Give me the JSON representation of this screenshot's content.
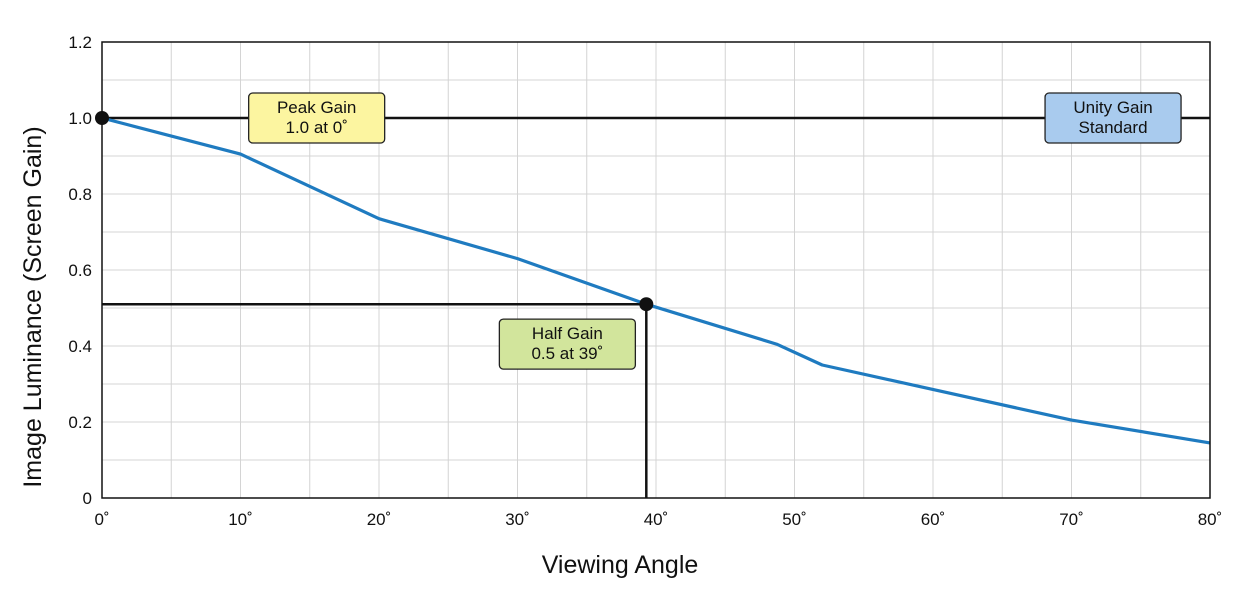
{
  "chart_data": {
    "type": "line",
    "xlabel": "Viewing Angle",
    "ylabel": "Image Luminance (Screen Gain)",
    "xlim": [
      0,
      80
    ],
    "ylim": [
      0,
      1.2
    ],
    "x_ticks": [
      {
        "value": 0,
        "label": "0˚"
      },
      {
        "value": 10,
        "label": "10˚"
      },
      {
        "value": 20,
        "label": "20˚"
      },
      {
        "value": 30,
        "label": "30˚"
      },
      {
        "value": 40,
        "label": "40˚"
      },
      {
        "value": 50,
        "label": "50˚"
      },
      {
        "value": 60,
        "label": "60˚"
      },
      {
        "value": 70,
        "label": "70˚"
      },
      {
        "value": 80,
        "label": "80˚"
      }
    ],
    "y_ticks": [
      {
        "value": 0,
        "label": "0"
      },
      {
        "value": 0.2,
        "label": "0.2"
      },
      {
        "value": 0.4,
        "label": "0.4"
      },
      {
        "value": 0.6,
        "label": "0.6"
      },
      {
        "value": 0.8,
        "label": "0.8"
      },
      {
        "value": 1.0,
        "label": "1.0"
      },
      {
        "value": 1.2,
        "label": "1.2"
      }
    ],
    "grid": true,
    "x_minor_step": 5,
    "y_minor_step": 0.1,
    "series": [
      {
        "color": "#1f7bc0",
        "x": [
          0,
          10,
          20,
          30,
          39.3,
          48.7,
          52,
          70,
          80
        ],
        "y": [
          1.0,
          0.905,
          0.735,
          0.63,
          0.51,
          0.405,
          0.35,
          0.205,
          0.145
        ]
      }
    ],
    "reference_lines": [
      {
        "orientation": "horizontal",
        "y": 1.0,
        "x_from": 0,
        "x_to": 80,
        "color": "#111111"
      },
      {
        "orientation": "horizontal",
        "y": 0.51,
        "x_from": 0,
        "x_to": 39.3,
        "color": "#111111"
      },
      {
        "orientation": "vertical",
        "x": 39.3,
        "y_from": 0,
        "y_to": 0.51,
        "color": "#111111"
      }
    ],
    "markers": [
      {
        "x": 0,
        "y": 1.0
      },
      {
        "x": 39.3,
        "y": 0.51
      }
    ],
    "annotations": [
      {
        "lines": [
          "Peak Gain",
          "1.0 at 0˚"
        ],
        "x": 15.5,
        "y": 1.0,
        "fill": "#fcf5a0"
      },
      {
        "lines": [
          "Unity Gain",
          "Standard"
        ],
        "x": 73,
        "y": 1.0,
        "fill": "#a9cbee"
      },
      {
        "lines": [
          "Half Gain",
          "0.5 at 39˚"
        ],
        "x": 33.6,
        "y": 0.405,
        "fill": "#d2e59c"
      }
    ]
  }
}
